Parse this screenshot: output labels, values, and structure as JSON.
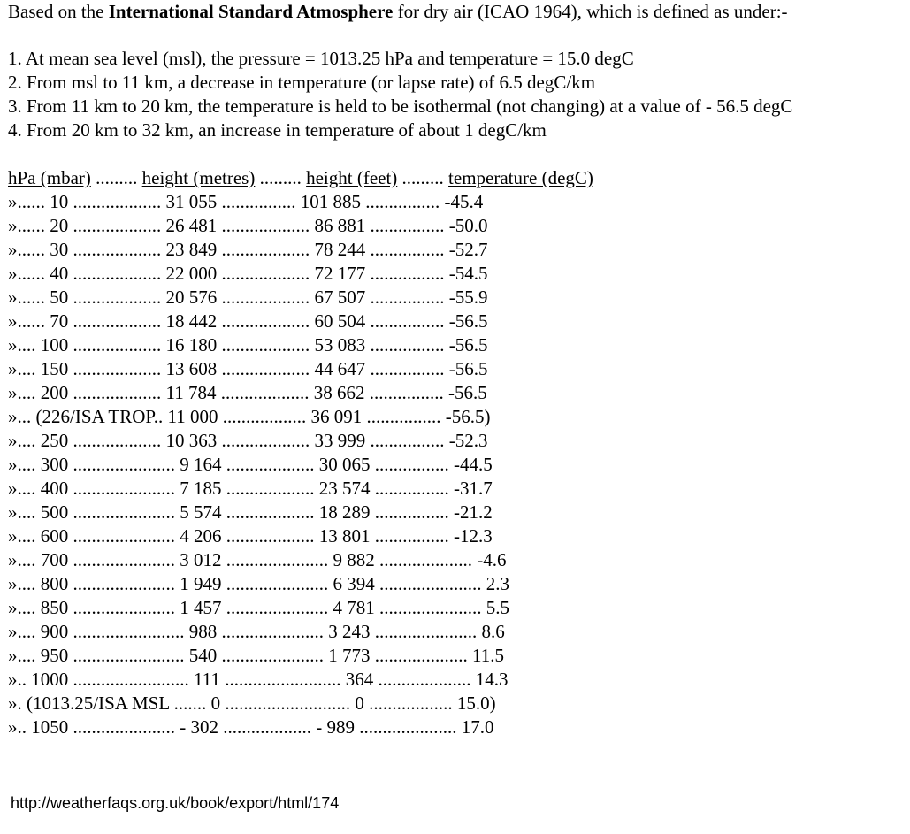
{
  "intro": {
    "prefix": "Based on the ",
    "bold": "International Standard Atmosphere",
    "suffix": " for dry air (ICAO 1964), which is defined as under:-"
  },
  "definitions": [
    "1. At mean sea level (msl), the pressure = 1013.25 hPa and temperature = 15.0 degC",
    "2. From msl to 11 km, a decrease in temperature (or lapse rate) of 6.5 degC/km",
    "3. From 11 km to 20 km, the temperature is held to be isothermal (not changing) at a value of - 56.5 degC",
    "4. From 20 km to 32 km, an increase in temperature of about 1 degC/km"
  ],
  "table": {
    "headers": [
      "hPa (mbar)",
      "height (metres)",
      "height (feet)",
      "temperature (degC)"
    ],
    "header_separators": [
      " ......... ",
      " ......... ",
      " ......... "
    ],
    "rows": [
      "»...... 10 ................... 31 055 ................ 101 885 ................ -45.4",
      "»...... 20 ................... 26 481 ................... 86 881 ................ -50.0",
      "»...... 30 ................... 23 849 ................... 78 244 ................ -52.7",
      "»...... 40 ................... 22 000 ................... 72 177 ................ -54.5",
      "»...... 50 ................... 20 576 ................... 67 507 ................ -55.9",
      "»...... 70 ................... 18 442 ................... 60 504 ................ -56.5",
      "».... 100 ................... 16 180 ................... 53 083 ................ -56.5",
      "».... 150 ................... 13 608 ................... 44 647 ................ -56.5",
      "».... 200 ................... 11 784 ................... 38 662 ................ -56.5",
      "»... (226/ISA TROP.. 11 000 .................. 36 091 ................ -56.5)",
      "».... 250 ................... 10 363 ................... 33 999 ................ -52.3",
      "».... 300 ...................... 9 164 ................... 30 065 ................ -44.5",
      "».... 400 ...................... 7 185 ................... 23 574 ................ -31.7",
      "».... 500 ...................... 5 574 ................... 18 289 ................ -21.2",
      "».... 600 ...................... 4 206 ................... 13 801 ................ -12.3",
      "».... 700 ...................... 3 012 ...................... 9 882 .................... -4.6",
      "».... 800 ...................... 1 949 ...................... 6 394 ...................... 2.3",
      "».... 850 ...................... 1 457 ...................... 4 781 ...................... 5.5",
      "».... 900 ........................ 988 ...................... 3 243 ...................... 8.6",
      "».... 950 ........................ 540 ...................... 1 773 .................... 11.5",
      "».. 1000 ......................... 111 ......................... 364 .................... 14.3",
      "». (1013.25/ISA MSL ....... 0 ........................... 0 .................. 15.0)",
      "».. 1050 ...................... - 302 ................... - 989 ..................... 17.0"
    ]
  },
  "footer_url": "http://weatherfaqs.org.uk/book/export/html/174"
}
